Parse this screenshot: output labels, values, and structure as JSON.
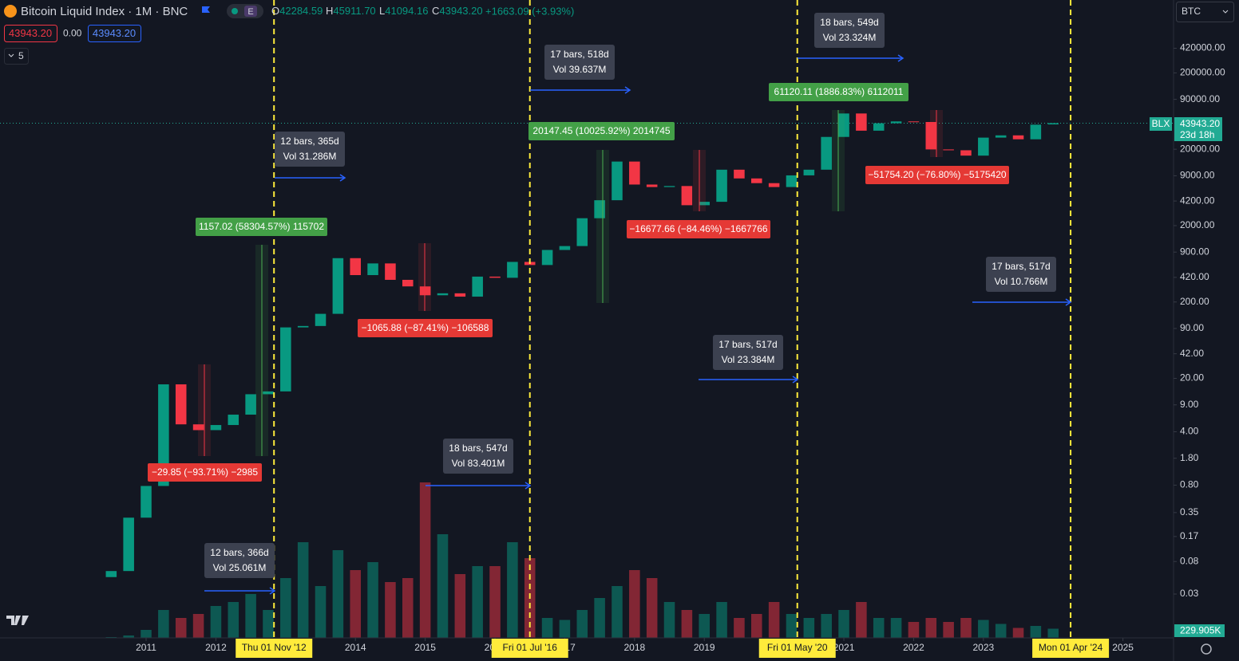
{
  "header": {
    "title": "Bitcoin Liquid Index · 1M · BNC",
    "badge": "E",
    "ohlc": [
      {
        "key": "O",
        "value": "42284.59"
      },
      {
        "key": "H",
        "value": "45911.70"
      },
      {
        "key": "L",
        "value": "41094.16"
      },
      {
        "key": "C",
        "value": "43943.20"
      }
    ],
    "change": "+1663.09 (+3.93%)",
    "sell": "43943.20",
    "spread": "0.00",
    "buy": "43943.20",
    "indicators": "5"
  },
  "right_panel": {
    "currency": "BTC",
    "symbol_tag": "BLX",
    "price_tag": "43943.20",
    "countdown": "23d 18h"
  },
  "chart_data": {
    "type": "candlestick",
    "log_scale": true,
    "up_color": "#089981",
    "down_color": "#f23645",
    "x": [
      2010.5,
      2010.75,
      2011.0,
      2011.25,
      2011.5,
      2011.75,
      2012.0,
      2012.25,
      2012.5,
      2012.75,
      2013.0,
      2013.25,
      2013.5,
      2013.75,
      2014.0,
      2014.25,
      2014.5,
      2014.75,
      2015.0,
      2015.25,
      2015.5,
      2015.75,
      2016.0,
      2016.25,
      2016.5,
      2016.75,
      2017.0,
      2017.25,
      2017.5,
      2017.75,
      2018.0,
      2018.25,
      2018.5,
      2018.75,
      2019.0,
      2019.25,
      2019.5,
      2019.75,
      2020.0,
      2020.25,
      2020.5,
      2020.75,
      2021.0,
      2021.25,
      2021.5,
      2021.75,
      2022.0,
      2022.25,
      2022.5,
      2022.75,
      2023.0,
      2023.25,
      2023.5,
      2023.75,
      2024.0
    ],
    "open": [
      0.05,
      0.06,
      0.3,
      0.78,
      16.7,
      5,
      4.2,
      4.9,
      6.7,
      12.4,
      13.5,
      93,
      97,
      140,
      750,
      450,
      640,
      390,
      320,
      245,
      260,
      235,
      430,
      415,
      670,
      610,
      960,
      1080,
      2500,
      4300,
      13800,
      6900,
      6400,
      6600,
      3700,
      4100,
      10800,
      8300,
      7200,
      6400,
      9100,
      10800,
      29000,
      58800,
      35000,
      43800,
      46300,
      45500,
      19900,
      19400,
      16500,
      28400,
      30400,
      27000,
      42284.59
    ],
    "close": [
      0.06,
      0.3,
      0.78,
      16.7,
      5,
      4.2,
      4.9,
      6.7,
      12.4,
      13.5,
      93,
      97,
      140,
      750,
      450,
      640,
      390,
      320,
      245,
      260,
      235,
      430,
      415,
      670,
      610,
      960,
      1080,
      2500,
      4300,
      13800,
      6900,
      6400,
      6600,
      3700,
      4100,
      10800,
      8300,
      7200,
      6400,
      9100,
      10800,
      29000,
      58800,
      35000,
      43800,
      46300,
      45500,
      19900,
      19400,
      16500,
      28400,
      30400,
      27000,
      42000,
      43943.2
    ],
    "volume": [
      20,
      60,
      200,
      700,
      500,
      600,
      800,
      900,
      1100,
      700,
      1500,
      2400,
      1300,
      2200,
      1700,
      1900,
      1400,
      1500,
      3900,
      2600,
      1600,
      1800,
      1800,
      2400,
      2000,
      500,
      450,
      700,
      1000,
      1300,
      1700,
      1500,
      900,
      700,
      600,
      900,
      500,
      600,
      900,
      600,
      500,
      600,
      700,
      900,
      500,
      500,
      400,
      500,
      400,
      500,
      450,
      350,
      250,
      300,
      229.905
    ],
    "current_volume": {
      "value": 229.905,
      "label": "229.905K"
    },
    "volume_lim": [
      0,
      16000
    ],
    "xlim": [
      2008.906,
      2025.725
    ],
    "ylim": [
      0.008,
      1800000
    ],
    "xticks": [
      2011,
      2012,
      2014,
      2015,
      2016,
      2017,
      2018,
      2019,
      2021,
      2022,
      2023,
      2025
    ],
    "yticks": [
      {
        "value": 420000,
        "label": "420000.00"
      },
      {
        "value": 200000,
        "label": "200000.00"
      },
      {
        "value": 90000,
        "label": "90000.00"
      },
      {
        "value": 20000,
        "label": "20000.00"
      },
      {
        "value": 9000,
        "label": "9000.00"
      },
      {
        "value": 4200,
        "label": "4200.00"
      },
      {
        "value": 2000,
        "label": "2000.00"
      },
      {
        "value": 900,
        "label": "900.00"
      },
      {
        "value": 420,
        "label": "420.00"
      },
      {
        "value": 200,
        "label": "200.00"
      },
      {
        "value": 90,
        "label": "90.00"
      },
      {
        "value": 42,
        "label": "42.00"
      },
      {
        "value": 20,
        "label": "20.00"
      },
      {
        "value": 9,
        "label": "9.00"
      },
      {
        "value": 4,
        "label": "4.00"
      },
      {
        "value": 1.8,
        "label": "1.80"
      },
      {
        "value": 0.8,
        "label": "0.80"
      },
      {
        "value": 0.35,
        "label": "0.35"
      },
      {
        "value": 0.17,
        "label": "0.17"
      },
      {
        "value": 0.08,
        "label": "0.08"
      },
      {
        "value": 0.03,
        "label": "0.03"
      }
    ],
    "current_price": 43943.2,
    "markers": [
      {
        "value": 2012.833,
        "label": "Thu 01 Nov '12"
      },
      {
        "value": 2016.5,
        "label": "Fri 01 Jul '16"
      },
      {
        "value": 2020.333,
        "label": "Fri 01 May '20"
      },
      {
        "value": 2024.25,
        "label": "Mon 01 Apr '24"
      }
    ],
    "price_ranges": [
      {
        "text": "1157.02 (58304.57%) 115702",
        "direction": "up"
      },
      {
        "text": "−29.85 (−93.71%) −2985",
        "direction": "down"
      },
      {
        "text": "−1065.88 (−87.41%) −106588",
        "direction": "down"
      },
      {
        "text": "20147.45 (10025.92%) 2014745",
        "direction": "up"
      },
      {
        "text": "−16677.66 (−84.46%) −1667766",
        "direction": "down"
      },
      {
        "text": "61120.11 (1886.83%) 6112011",
        "direction": "up"
      },
      {
        "text": "−51754.20 (−76.80%) −5175420",
        "direction": "down"
      }
    ],
    "date_ranges": [
      {
        "bars": "12 bars, 365d",
        "volume": "Vol 31.286M"
      },
      {
        "bars": "17 bars, 518d",
        "volume": "Vol 39.637M"
      },
      {
        "bars": "18 bars, 549d",
        "volume": "Vol 23.324M"
      },
      {
        "bars": "17 bars, 517d",
        "volume": "Vol 10.766M"
      },
      {
        "bars": "17 bars, 517d",
        "volume": "Vol 23.384M"
      },
      {
        "bars": "18 bars, 547d",
        "volume": "Vol 83.401M"
      },
      {
        "bars": "12 bars, 366d",
        "volume": "Vol 25.061M"
      }
    ]
  }
}
